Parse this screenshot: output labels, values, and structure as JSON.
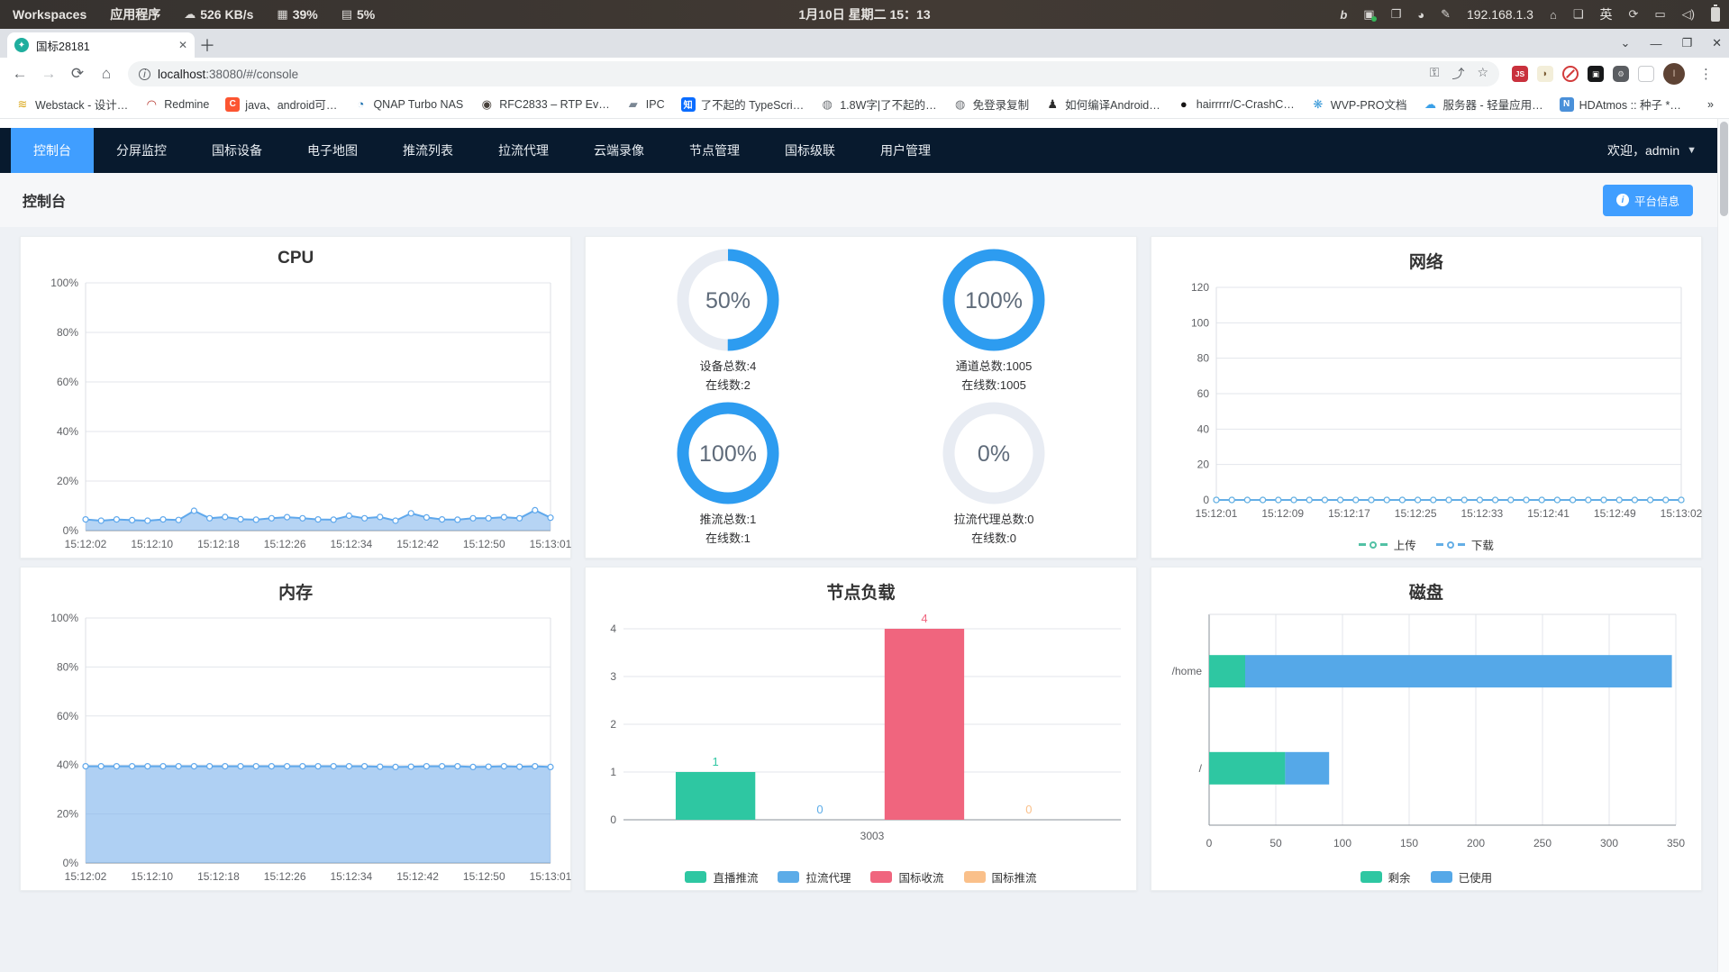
{
  "colors": {
    "primary": "#409EFF",
    "nav_bg": "#081a2e",
    "donut_ring": "#2D9CF0",
    "donut_track": "#E8ECF3"
  },
  "sysbar": {
    "workspaces": "Workspaces",
    "apps": "应用程序",
    "net_speed": "526 KB/s",
    "cpu_pct": "39%",
    "mem_pct": "5%",
    "datetime": "1月10日 星期二 15：13",
    "ip": "192.168.1.3",
    "ime": "英"
  },
  "browser": {
    "tab_title": "国标28181",
    "url_host": "localhost",
    "url_rest": ":38080/#/console",
    "bookmarks": [
      {
        "label": "Webstack - 设计…",
        "glyph": "≋",
        "fg": "#d9a514",
        "bg": ""
      },
      {
        "label": "Redmine",
        "glyph": "◠",
        "fg": "#b5352c",
        "bg": ""
      },
      {
        "label": "java、android可…",
        "glyph": "C",
        "fg": "#ffffff",
        "bg": "#fc5531"
      },
      {
        "label": "QNAP Turbo NAS",
        "glyph": "◔",
        "fg": "#1a6fae",
        "bg": ""
      },
      {
        "label": "RFC2833 – RTP Ev…",
        "glyph": "◉",
        "fg": "#47403a",
        "bg": ""
      },
      {
        "label": "IPC",
        "glyph": "▰",
        "fg": "#7b8794",
        "bg": ""
      },
      {
        "label": "了不起的 TypeScri…",
        "glyph": "知",
        "fg": "#ffffff",
        "bg": "#0a6cff"
      },
      {
        "label": "1.8W字|了不起的…",
        "glyph": "◍",
        "fg": "#6f7377",
        "bg": ""
      },
      {
        "label": "免登录复制",
        "glyph": "◍",
        "fg": "#6f7377",
        "bg": ""
      },
      {
        "label": "如何编译Android…",
        "glyph": "♟",
        "fg": "#2b2b2b",
        "bg": ""
      },
      {
        "label": "hairrrrr/C-CrashC…",
        "glyph": "●",
        "fg": "#171515",
        "bg": ""
      },
      {
        "label": "WVP-PRO文档",
        "glyph": "❋",
        "fg": "#3a9ad9",
        "bg": ""
      },
      {
        "label": "服务器 - 轻量应用…",
        "glyph": "☁",
        "fg": "#3aa0e8",
        "bg": ""
      },
      {
        "label": "HDAtmos :: 种子 *…",
        "glyph": "N",
        "fg": "#ffffff",
        "bg": "#4a90d9"
      },
      {
        "label": "»",
        "glyph": "",
        "fg": "#5f6368",
        "bg": ""
      }
    ]
  },
  "nav": {
    "items": [
      "控制台",
      "分屏监控",
      "国标设备",
      "电子地图",
      "推流列表",
      "拉流代理",
      "云端录像",
      "节点管理",
      "国标级联",
      "用户管理"
    ],
    "welcome": "欢迎，admin"
  },
  "page": {
    "title": "控制台",
    "platform_info": "平台信息"
  },
  "chart_data": [
    {
      "type": "area",
      "title": "CPU",
      "percent": true,
      "ymax": 100,
      "ystep": 20,
      "xlabels": [
        "15:12:02",
        "15:12:10",
        "15:12:18",
        "15:12:26",
        "15:12:34",
        "15:12:42",
        "15:12:50",
        "15:13:01"
      ],
      "series": [
        {
          "name": "CPU",
          "color": "#5FA8EC",
          "fill": "rgba(122,177,235,0.55)",
          "values": [
            4.5,
            4,
            4.5,
            4.2,
            4,
            4.5,
            4.3,
            8,
            5,
            5.5,
            4.6,
            4.4,
            5,
            5.4,
            5,
            4.5,
            4.4,
            6,
            5,
            5.5,
            4,
            7,
            5.3,
            4.5,
            4.4,
            5,
            5,
            5.4,
            5,
            8.2,
            5.2
          ]
        }
      ]
    },
    {
      "type": "donut-grid",
      "donuts": [
        {
          "percent": 50,
          "line1": "设备总数:4",
          "line2": "在线数:2"
        },
        {
          "percent": 100,
          "line1": "通道总数:1005",
          "line2": "在线数:1005"
        },
        {
          "percent": 100,
          "line1": "推流总数:1",
          "line2": "在线数:1"
        },
        {
          "percent": 0,
          "line1": "拉流代理总数:0",
          "line2": "在线数:0"
        }
      ]
    },
    {
      "type": "line",
      "title": "网络",
      "percent": false,
      "ymax": 120,
      "ystep": 20,
      "legend": "ring",
      "xlabels": [
        "15:12:01",
        "15:12:09",
        "15:12:17",
        "15:12:25",
        "15:12:33",
        "15:12:41",
        "15:12:49",
        "15:13:02"
      ],
      "series": [
        {
          "name": "上传",
          "color": "#52C1A5",
          "values": [
            0,
            0,
            0,
            0,
            0,
            0,
            0,
            0,
            0,
            0,
            0,
            0,
            0,
            0,
            0,
            0,
            0,
            0,
            0,
            0,
            0,
            0,
            0,
            0,
            0,
            0,
            0,
            0,
            0,
            0,
            0
          ]
        },
        {
          "name": "下载",
          "color": "#64AEE6",
          "values": [
            0,
            0,
            0,
            0,
            0,
            0,
            0,
            0,
            0,
            0,
            0,
            0,
            0,
            0,
            0,
            0,
            0,
            0,
            0,
            0,
            0,
            0,
            0,
            0,
            0,
            0,
            0,
            0,
            0,
            0,
            0
          ]
        }
      ]
    },
    {
      "type": "area",
      "title": "内存",
      "percent": true,
      "ymax": 100,
      "ystep": 20,
      "xlabels": [
        "15:12:02",
        "15:12:10",
        "15:12:18",
        "15:12:26",
        "15:12:34",
        "15:12:42",
        "15:12:50",
        "15:13:01"
      ],
      "series": [
        {
          "name": "内存",
          "color": "#5FA8EC",
          "fill": "rgba(122,177,235,0.6)",
          "values": [
            39.5,
            39.5,
            39.5,
            39.5,
            39.5,
            39.5,
            39.5,
            39.5,
            39.5,
            39.5,
            39.5,
            39.5,
            39.5,
            39.5,
            39.5,
            39.5,
            39.5,
            39.5,
            39.5,
            39.3,
            39.2,
            39.3,
            39.5,
            39.5,
            39.5,
            39.2,
            39.3,
            39.5,
            39.3,
            39.5,
            39.2
          ]
        }
      ]
    },
    {
      "type": "bar",
      "title": "节点负载",
      "ymax": 4,
      "category": "3003",
      "legend": "rect",
      "series": [
        {
          "name": "直播推流",
          "color": "#2EC7A2",
          "value": 1
        },
        {
          "name": "拉流代理",
          "color": "#5CACE8",
          "value": 0
        },
        {
          "name": "国标收流",
          "color": "#F0657E",
          "value": 4
        },
        {
          "name": "国标推流",
          "color": "#FAC08A",
          "value": 0
        }
      ]
    },
    {
      "type": "hbar",
      "title": "磁盘",
      "xmax": 350,
      "xstep": 50,
      "legend": "rect",
      "categories": [
        "/home",
        "/"
      ],
      "series": [
        {
          "name": "剩余",
          "color": "#2EC7A2",
          "values": [
            27,
            57
          ]
        },
        {
          "name": "已使用",
          "color": "#55A8E8",
          "values": [
            320,
            33
          ]
        }
      ]
    }
  ]
}
